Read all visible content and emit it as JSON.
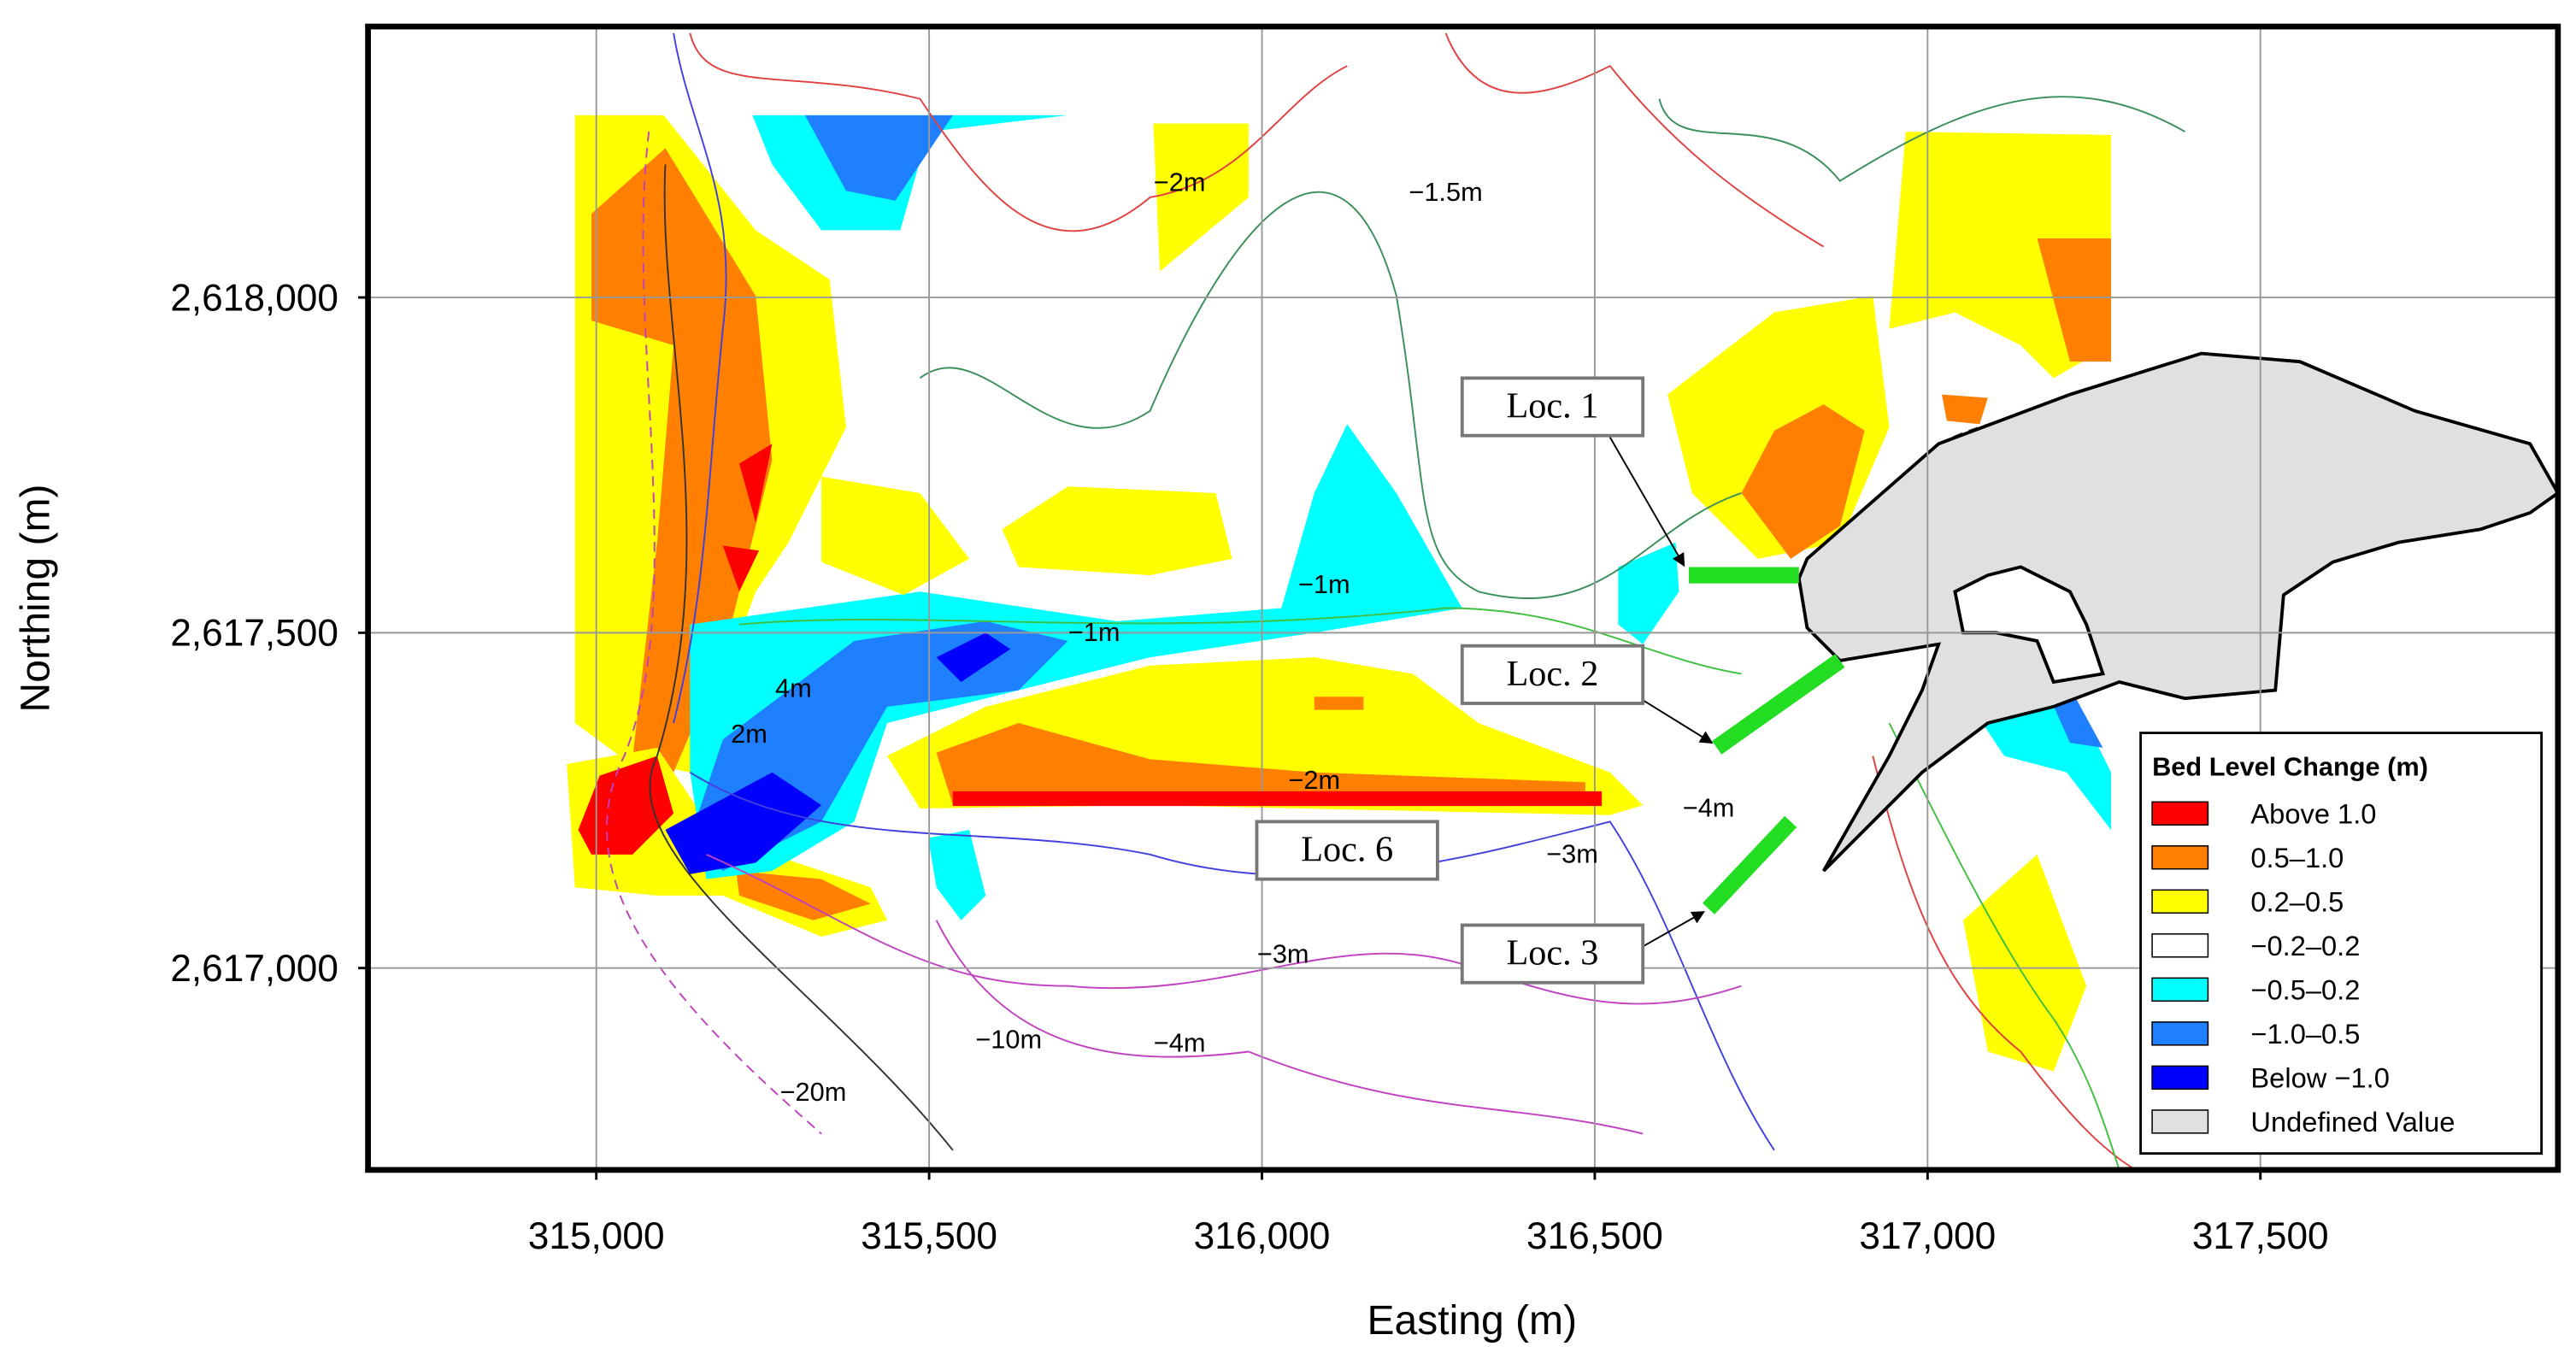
{
  "map": {
    "x_label": "Easting (m)",
    "y_label": "Northing (m)",
    "xlim": [
      314657,
      317947
    ],
    "ylim": [
      2616699,
      2618404
    ],
    "xticks": [
      {
        "value": 315000,
        "label": "315,000"
      },
      {
        "value": 315500,
        "label": "315,500"
      },
      {
        "value": 316000,
        "label": "316,000"
      },
      {
        "value": 316500,
        "label": "316,500"
      },
      {
        "value": 317000,
        "label": "317,000"
      },
      {
        "value": 317500,
        "label": "317,500"
      }
    ],
    "yticks": [
      {
        "value": 2617000,
        "label": "2,617,000"
      },
      {
        "value": 2617500,
        "label": "2,617,500"
      },
      {
        "value": 2618000,
        "label": "2,618,000"
      }
    ],
    "grid": true,
    "legend": {
      "title": "Bed Level Change (m)",
      "entries": [
        {
          "label": "Above 1.0",
          "color": "#ff0000"
        },
        {
          "label": "0.5–1.0",
          "color": "#ff8000"
        },
        {
          "label": "0.2–0.5",
          "color": "#ffff00"
        },
        {
          "label": "−0.2–0.2",
          "color": "#ffffff"
        },
        {
          "label": "−0.5–0.2",
          "color": "#00ffff"
        },
        {
          "label": "−1.0–0.5",
          "color": "#1e7fff"
        },
        {
          "label": "Below −1.0",
          "color": "#0000ff"
        },
        {
          "label": "Undefined Value",
          "color": "#e0e0e0"
        }
      ]
    },
    "contour_labels": [
      "−2m",
      "−1.5m",
      "−1m",
      "−1m",
      "4m",
      "2m",
      "−2m",
      "−4m",
      "−3m",
      "−3m",
      "−10m",
      "−4m",
      "−20m"
    ],
    "locations": [
      "Loc. 1",
      "Loc. 2",
      "Loc. 3",
      "Loc. 6"
    ]
  }
}
